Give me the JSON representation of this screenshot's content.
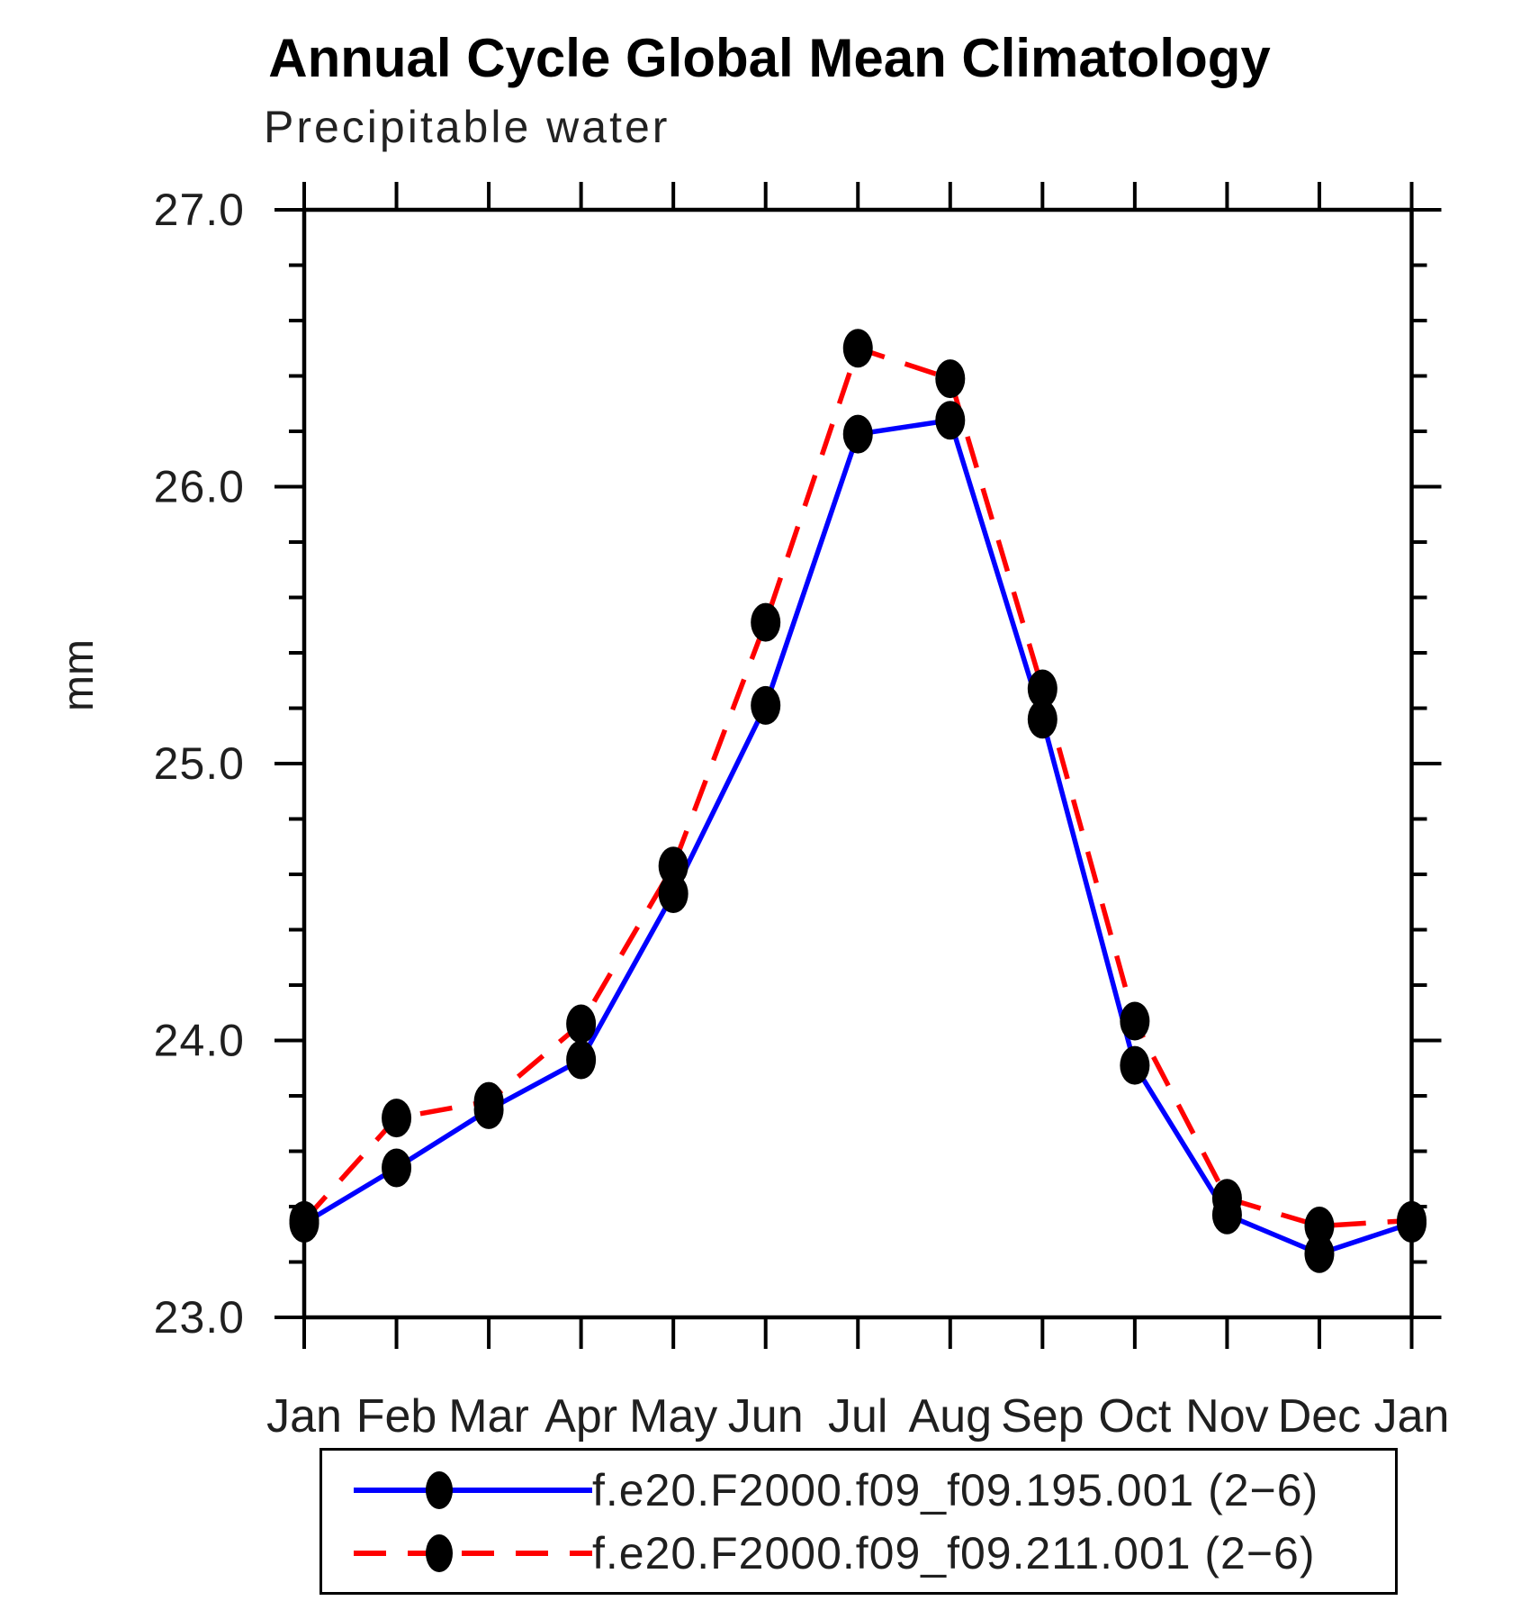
{
  "title": "Annual Cycle Global Mean Climatology",
  "subtitle": "Precipitable water",
  "chart_data": {
    "type": "line",
    "categories": [
      "Jan",
      "Feb",
      "Mar",
      "Apr",
      "May",
      "Jun",
      "Jul",
      "Aug",
      "Sep",
      "Oct",
      "Nov",
      "Dec",
      "Jan"
    ],
    "xlabel": "",
    "ylabel": "mm",
    "ylim": [
      23.0,
      27.0
    ],
    "ytick_values": [
      23.0,
      24.0,
      25.0,
      26.0,
      27.0
    ],
    "ytick_labels": [
      "23.0",
      "24.0",
      "25.0",
      "26.0",
      "27.0"
    ],
    "ytick_minor_step": 0.2,
    "grid": false,
    "legend_position": "bottom",
    "axis_color": "#000000",
    "marker_color": "#000000",
    "series": [
      {
        "name": "f.e20.F2000.f09_f09.195.001 (2−6)",
        "color": "#0000ff",
        "style": "solid",
        "marker": "circle",
        "values": [
          23.34,
          23.54,
          23.75,
          23.93,
          24.53,
          25.21,
          26.19,
          26.24,
          25.16,
          23.91,
          23.37,
          23.23,
          23.34
        ]
      },
      {
        "name": "f.e20.F2000.f09_f09.211.001 (2−6)",
        "color": "#ff0000",
        "style": "dashed",
        "marker": "circle",
        "values": [
          23.35,
          23.72,
          23.78,
          24.06,
          24.63,
          25.51,
          26.5,
          26.39,
          25.27,
          24.07,
          23.43,
          23.33,
          23.35
        ]
      }
    ]
  }
}
